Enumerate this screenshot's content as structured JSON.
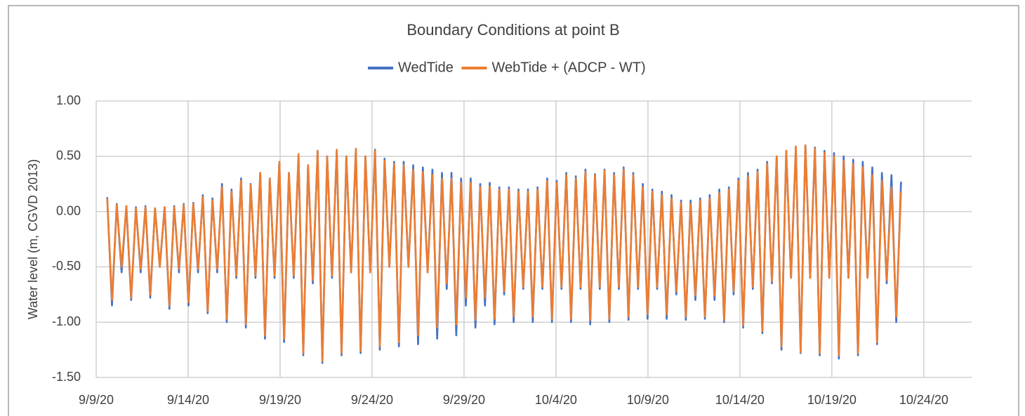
{
  "chart_data": {
    "type": "line",
    "title": "Boundary Conditions at point B",
    "y_label": "Water level (m, CGVD 2013)",
    "x": [
      0.6,
      0.86,
      1.12,
      1.38,
      1.64,
      1.9,
      2.16,
      2.42,
      2.68,
      2.94,
      3.2,
      3.46,
      3.72,
      3.98,
      4.24,
      4.5,
      4.76,
      5.02,
      5.28,
      5.54,
      5.8,
      6.06,
      6.32,
      6.58,
      6.84,
      7.1,
      7.36,
      7.62,
      7.88,
      8.14,
      8.4,
      8.66,
      8.92,
      9.18,
      9.44,
      9.7,
      9.96,
      10.22,
      10.48,
      10.74,
      11,
      11.26,
      11.52,
      11.78,
      12.04,
      12.3,
      12.56,
      12.82,
      13.08,
      13.34,
      13.6,
      13.86,
      14.12,
      14.38,
      14.64,
      14.9,
      15.16,
      15.42,
      15.68,
      15.94,
      16.2,
      16.46,
      16.72,
      16.98,
      17.24,
      17.5,
      17.76,
      18.02,
      18.28,
      18.54,
      18.8,
      19.06,
      19.32,
      19.58,
      19.84,
      20.1,
      20.36,
      20.62,
      20.88,
      21.14,
      21.4,
      21.66,
      21.92,
      22.18,
      22.44,
      22.7,
      22.96,
      23.22,
      23.48,
      23.74,
      24,
      24.26,
      24.52,
      24.78,
      25.04,
      25.3,
      25.56,
      25.82,
      26.08,
      26.34,
      26.6,
      26.86,
      27.12,
      27.38,
      27.64,
      27.9,
      28.16,
      28.42,
      28.68,
      28.94,
      29.2,
      29.46,
      29.72,
      29.98,
      30.24,
      30.5,
      30.76,
      31.02,
      31.28,
      31.54,
      31.8,
      32.06,
      32.32,
      32.58,
      32.84,
      33.1,
      33.36,
      33.62,
      33.88,
      34.14,
      34.4,
      34.66,
      34.92,
      35.18,
      35.44,
      35.7,
      35.96,
      36.22,
      36.48,
      36.74,
      37,
      37.26,
      37.52,
      37.78,
      38.04,
      38.3,
      38.56,
      38.82,
      39.08,
      39.34,
      39.6,
      39.86,
      40.12,
      40.38,
      40.64,
      40.9,
      41.16,
      41.42,
      41.68,
      41.94,
      42.2,
      42.46,
      42.72,
      42.98,
      43.24,
      43.5,
      43.76
    ],
    "series": [
      {
        "name": "WedTide",
        "color": "#4472c4",
        "values": [
          0.13,
          -0.85,
          0.07,
          -0.55,
          0.05,
          -0.8,
          0.04,
          -0.55,
          0.05,
          -0.78,
          0.03,
          -0.5,
          0.04,
          -0.88,
          0.05,
          -0.55,
          0.07,
          -0.85,
          0.08,
          -0.55,
          0.15,
          -0.92,
          0.12,
          -0.55,
          0.25,
          -1,
          0.2,
          -0.6,
          0.3,
          -1.05,
          0.25,
          -0.6,
          0.35,
          -1.15,
          0.3,
          -0.6,
          0.45,
          -1.18,
          0.35,
          -0.6,
          0.5,
          -1.3,
          0.42,
          -0.65,
          0.55,
          -1.37,
          0.5,
          -0.6,
          0.55,
          -1.3,
          0.5,
          -0.55,
          0.56,
          -1.28,
          0.5,
          -0.55,
          0.56,
          -1.25,
          0.48,
          -0.5,
          0.45,
          -1.22,
          0.45,
          -0.5,
          0.42,
          -1.2,
          0.4,
          -0.55,
          0.38,
          -1.15,
          0.35,
          -0.7,
          0.35,
          -1.12,
          0.3,
          -0.85,
          0.3,
          -1.05,
          0.25,
          -0.85,
          0.26,
          -1.02,
          0.22,
          -0.75,
          0.22,
          -1,
          0.2,
          -0.7,
          0.2,
          -1,
          0.22,
          -0.7,
          0.3,
          -1,
          0.28,
          -0.7,
          0.35,
          -1,
          0.32,
          -0.7,
          0.38,
          -1.02,
          0.34,
          -0.7,
          0.38,
          -1,
          0.35,
          -0.7,
          0.4,
          -0.98,
          0.35,
          -0.7,
          0.25,
          -0.97,
          0.2,
          -0.7,
          0.18,
          -0.97,
          0.15,
          -0.75,
          0.1,
          -0.98,
          0.1,
          -0.8,
          0.12,
          -0.97,
          0.15,
          -0.8,
          0.2,
          -1,
          0.22,
          -0.75,
          0.3,
          -1.05,
          0.35,
          -0.7,
          0.38,
          -1.1,
          0.45,
          -0.65,
          0.5,
          -1.25,
          0.55,
          -0.6,
          0.58,
          -1.28,
          0.6,
          -0.6,
          0.58,
          -1.3,
          0.55,
          -0.6,
          0.53,
          -1.33,
          0.5,
          -0.6,
          0.47,
          -1.3,
          0.45,
          -0.6,
          0.4,
          -1.2,
          0.35,
          -0.65,
          0.33,
          -1,
          0.27
        ]
      },
      {
        "name": "WebTide + (ADCP - WT)",
        "color": "#ed7d31",
        "values": [
          0.12,
          -0.8,
          0.06,
          -0.5,
          0.05,
          -0.78,
          0.03,
          -0.52,
          0.04,
          -0.75,
          0.03,
          -0.5,
          0.04,
          -0.85,
          0.04,
          -0.52,
          0.06,
          -0.82,
          0.07,
          -0.52,
          0.13,
          -0.9,
          0.1,
          -0.52,
          0.22,
          -0.97,
          0.18,
          -0.58,
          0.28,
          -1.02,
          0.24,
          -0.58,
          0.35,
          -1.12,
          0.3,
          -0.58,
          0.45,
          -1.15,
          0.35,
          -0.58,
          0.52,
          -1.28,
          0.42,
          -0.62,
          0.55,
          -1.35,
          0.5,
          -0.58,
          0.56,
          -1.28,
          0.5,
          -0.55,
          0.57,
          -1.26,
          0.5,
          -0.55,
          0.55,
          -1.22,
          0.46,
          -0.5,
          0.43,
          -1.18,
          0.42,
          -0.5,
          0.38,
          -1.12,
          0.36,
          -0.55,
          0.33,
          -1.05,
          0.3,
          -0.65,
          0.3,
          -1.02,
          0.26,
          -0.78,
          0.26,
          -0.98,
          0.22,
          -0.78,
          0.23,
          -0.97,
          0.2,
          -0.72,
          0.2,
          -0.95,
          0.18,
          -0.68,
          0.18,
          -0.95,
          0.2,
          -0.68,
          0.28,
          -0.97,
          0.26,
          -0.68,
          0.33,
          -0.97,
          0.3,
          -0.68,
          0.36,
          -0.98,
          0.33,
          -0.68,
          0.37,
          -0.97,
          0.33,
          -0.68,
          0.38,
          -0.95,
          0.33,
          -0.68,
          0.22,
          -0.93,
          0.18,
          -0.68,
          0.15,
          -0.93,
          0.12,
          -0.72,
          0.08,
          -0.95,
          0.07,
          -0.76,
          0.1,
          -0.95,
          0.12,
          -0.76,
          0.17,
          -0.98,
          0.2,
          -0.72,
          0.28,
          -1.03,
          0.32,
          -0.68,
          0.36,
          -1.08,
          0.43,
          -0.63,
          0.5,
          -1.22,
          0.55,
          -0.6,
          0.59,
          -1.27,
          0.6,
          -0.6,
          0.57,
          -1.28,
          0.53,
          -0.6,
          0.5,
          -1.3,
          0.46,
          -0.6,
          0.43,
          -1.28,
          0.4,
          -0.6,
          0.33,
          -1.18,
          0.28,
          -0.62,
          0.22,
          -0.95,
          0.18
        ]
      }
    ],
    "xlim": [
      0,
      47.6
    ],
    "xticks": [
      {
        "value": 0,
        "label": "9/9/20"
      },
      {
        "value": 5,
        "label": "9/14/20"
      },
      {
        "value": 10,
        "label": "9/19/20"
      },
      {
        "value": 15,
        "label": "9/24/20"
      },
      {
        "value": 20,
        "label": "9/29/20"
      },
      {
        "value": 25,
        "label": "10/4/20"
      },
      {
        "value": 30,
        "label": "10/9/20"
      },
      {
        "value": 35,
        "label": "10/14/20"
      },
      {
        "value": 40,
        "label": "10/19/20"
      },
      {
        "value": 45,
        "label": "10/24/20"
      }
    ],
    "ylim": [
      -1.5,
      1
    ],
    "yticks": [
      {
        "value": -1.5,
        "label": "-1.50"
      },
      {
        "value": -1,
        "label": "-1.00"
      },
      {
        "value": -0.5,
        "label": "-0.50"
      },
      {
        "value": 0,
        "label": "0.00"
      },
      {
        "value": 0.5,
        "label": "0.50"
      },
      {
        "value": 1,
        "label": "1.00"
      }
    ],
    "grid": true,
    "legend": "top"
  }
}
